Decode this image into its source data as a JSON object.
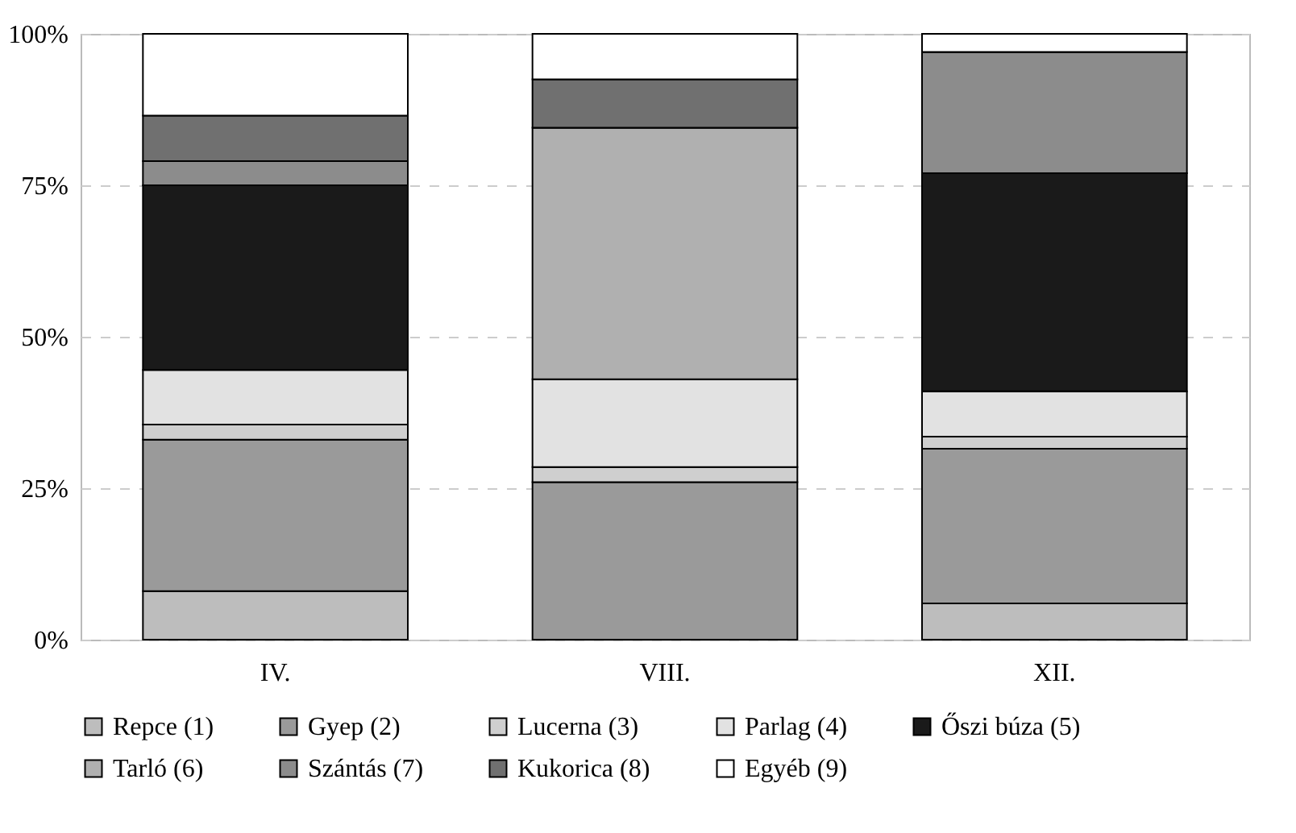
{
  "chart_data": {
    "type": "bar",
    "stacked": true,
    "categories": [
      "IV.",
      "VIII.",
      "XII."
    ],
    "series": [
      {
        "name": "Repce (1)",
        "color": "#bdbdbd",
        "values": [
          8,
          0,
          6
        ]
      },
      {
        "name": "Gyep (2)",
        "color": "#9a9a9a",
        "values": [
          25,
          26,
          25.5
        ]
      },
      {
        "name": "Lucerna (3)",
        "color": "#cfcfcf",
        "values": [
          2.5,
          2.5,
          2
        ]
      },
      {
        "name": "Parlag (4)",
        "color": "#e2e2e2",
        "values": [
          9,
          14.5,
          7.5
        ]
      },
      {
        "name": "Őszi búza (5)",
        "color": "#1a1a1a",
        "values": [
          30.5,
          0,
          36
        ]
      },
      {
        "name": "Tarló (6)",
        "color": "#b0b0b0",
        "values": [
          0,
          41.5,
          0
        ]
      },
      {
        "name": "Szántás (7)",
        "color": "#8c8c8c",
        "values": [
          4,
          0,
          20
        ]
      },
      {
        "name": "Kukorica (8)",
        "color": "#707070",
        "values": [
          7.5,
          8,
          0
        ]
      },
      {
        "name": "Egyéb (9)",
        "color": "#ffffff",
        "values": [
          13.5,
          7.5,
          3
        ]
      }
    ],
    "ylim": [
      0,
      100
    ],
    "yticks": [
      {
        "value": 0,
        "label": "0%"
      },
      {
        "value": 25,
        "label": "25%"
      },
      {
        "value": 50,
        "label": "50%"
      },
      {
        "value": 75,
        "label": "75%"
      },
      {
        "value": 100,
        "label": "100%"
      }
    ],
    "grid": "y",
    "legend": "bottom"
  }
}
